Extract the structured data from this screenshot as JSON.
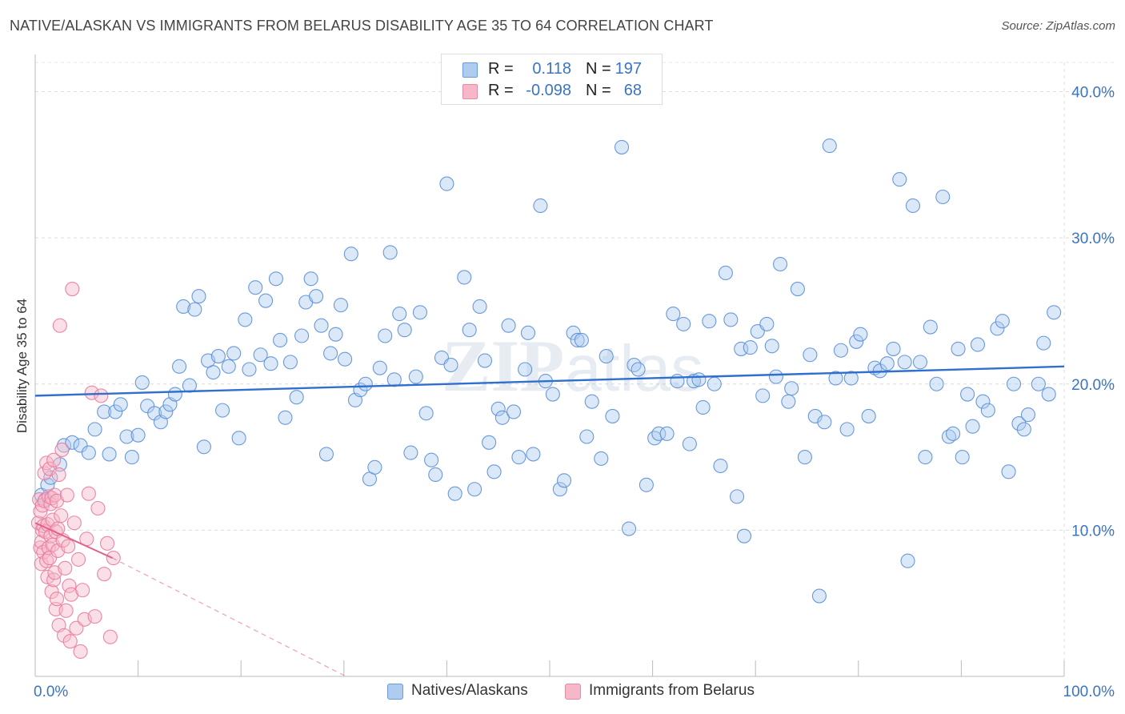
{
  "header": {
    "title": "NATIVE/ALASKAN VS IMMIGRANTS FROM BELARUS DISABILITY AGE 35 TO 64 CORRELATION CHART",
    "source": "Source: ZipAtlas.com"
  },
  "watermark": {
    "zip": "ZIP",
    "atlas": "atlas"
  },
  "legend_top": {
    "rows": [
      {
        "r_label": "R =",
        "r_value": "0.118",
        "n_label": "N =",
        "n_value": "197",
        "color": "#aecbf0"
      },
      {
        "r_label": "R =",
        "r_value": "-0.098",
        "n_label": "N =",
        "n_value": "68",
        "color": "#f6b8c8"
      }
    ]
  },
  "legend_bottom": [
    {
      "label": "Natives/Alaskans",
      "color": "#aecbf0"
    },
    {
      "label": "Immigrants from Belarus",
      "color": "#f6b8c8"
    }
  ],
  "chart_data": {
    "type": "scatter",
    "title": "NATIVE/ALASKAN VS IMMIGRANTS FROM BELARUS DISABILITY AGE 35 TO 64 CORRELATION CHART",
    "xlabel": "",
    "ylabel": "Disability Age 35 to 64",
    "xlim": [
      0,
      100
    ],
    "ylim": [
      0,
      42
    ],
    "x_tick_labels": [
      "0.0%",
      "100.0%"
    ],
    "y_ticks": [
      10,
      20,
      30,
      40
    ],
    "y_tick_labels": [
      "10.0%",
      "20.0%",
      "30.0%",
      "40.0%"
    ],
    "grid": true,
    "legend_position": "top-center",
    "series": [
      {
        "name": "Natives/Alaskans",
        "color": "#5b8fd6",
        "fill": "#aecbf0",
        "trend": {
          "x": [
            0,
            100
          ],
          "y": [
            19.2,
            21.2
          ],
          "color": "#2f6fcf"
        },
        "points": [
          [
            0.6,
            12.4
          ],
          [
            1.0,
            12.1
          ],
          [
            1.2,
            13.1
          ],
          [
            1.5,
            13.6
          ],
          [
            2.4,
            14.5
          ],
          [
            2.8,
            15.8
          ],
          [
            3.6,
            16.0
          ],
          [
            4.4,
            15.8
          ],
          [
            5.2,
            15.3
          ],
          [
            5.8,
            16.9
          ],
          [
            6.7,
            18.1
          ],
          [
            7.2,
            15.2
          ],
          [
            7.8,
            18.1
          ],
          [
            8.3,
            18.6
          ],
          [
            8.9,
            16.4
          ],
          [
            9.4,
            15.0
          ],
          [
            10.0,
            16.5
          ],
          [
            10.4,
            20.1
          ],
          [
            10.9,
            18.5
          ],
          [
            11.6,
            18.0
          ],
          [
            12.2,
            17.4
          ],
          [
            12.7,
            18.1
          ],
          [
            13.1,
            18.6
          ],
          [
            13.6,
            19.3
          ],
          [
            14.0,
            21.2
          ],
          [
            14.4,
            25.3
          ],
          [
            15.0,
            19.9
          ],
          [
            15.5,
            25.1
          ],
          [
            15.9,
            26.0
          ],
          [
            16.4,
            15.7
          ],
          [
            16.8,
            21.6
          ],
          [
            17.3,
            20.8
          ],
          [
            17.8,
            21.9
          ],
          [
            18.2,
            18.2
          ],
          [
            18.8,
            21.2
          ],
          [
            19.3,
            22.1
          ],
          [
            19.8,
            16.3
          ],
          [
            20.4,
            24.4
          ],
          [
            20.8,
            21.0
          ],
          [
            21.4,
            26.6
          ],
          [
            21.9,
            22.0
          ],
          [
            22.4,
            25.7
          ],
          [
            22.9,
            21.4
          ],
          [
            23.4,
            27.2
          ],
          [
            23.8,
            23.0
          ],
          [
            24.3,
            17.7
          ],
          [
            24.8,
            21.5
          ],
          [
            25.4,
            19.1
          ],
          [
            25.9,
            23.3
          ],
          [
            26.3,
            25.6
          ],
          [
            26.8,
            27.2
          ],
          [
            27.3,
            26.0
          ],
          [
            27.8,
            24.0
          ],
          [
            28.3,
            15.2
          ],
          [
            28.7,
            22.1
          ],
          [
            29.2,
            23.4
          ],
          [
            29.7,
            25.4
          ],
          [
            30.1,
            21.7
          ],
          [
            30.7,
            28.9
          ],
          [
            31.1,
            18.9
          ],
          [
            31.6,
            19.6
          ],
          [
            32.1,
            20.0
          ],
          [
            32.5,
            13.5
          ],
          [
            33.0,
            14.3
          ],
          [
            33.5,
            21.1
          ],
          [
            34.0,
            23.3
          ],
          [
            34.5,
            29.0
          ],
          [
            34.9,
            20.3
          ],
          [
            35.4,
            24.8
          ],
          [
            35.9,
            23.7
          ],
          [
            36.5,
            15.3
          ],
          [
            37.0,
            20.5
          ],
          [
            37.4,
            24.9
          ],
          [
            38.0,
            18.0
          ],
          [
            38.5,
            14.8
          ],
          [
            38.9,
            13.8
          ],
          [
            39.5,
            21.8
          ],
          [
            40.0,
            33.7
          ],
          [
            40.4,
            21.3
          ],
          [
            40.8,
            12.5
          ],
          [
            41.7,
            27.3
          ],
          [
            42.2,
            23.7
          ],
          [
            42.7,
            12.8
          ],
          [
            43.2,
            25.3
          ],
          [
            43.7,
            21.6
          ],
          [
            44.1,
            16.0
          ],
          [
            44.6,
            14.0
          ],
          [
            45.0,
            18.3
          ],
          [
            45.4,
            17.7
          ],
          [
            46.0,
            24.0
          ],
          [
            46.5,
            18.1
          ],
          [
            47.0,
            15.0
          ],
          [
            47.6,
            21.0
          ],
          [
            47.9,
            23.5
          ],
          [
            48.4,
            15.2
          ],
          [
            49.1,
            32.2
          ],
          [
            49.6,
            20.2
          ],
          [
            50.3,
            19.3
          ],
          [
            51.0,
            12.8
          ],
          [
            51.4,
            13.4
          ],
          [
            52.3,
            23.5
          ],
          [
            52.7,
            23.0
          ],
          [
            53.1,
            23.0
          ],
          [
            53.6,
            16.4
          ],
          [
            54.1,
            18.8
          ],
          [
            55.0,
            14.9
          ],
          [
            55.5,
            21.9
          ],
          [
            56.1,
            17.8
          ],
          [
            57.0,
            36.2
          ],
          [
            57.7,
            10.1
          ],
          [
            58.2,
            21.3
          ],
          [
            58.6,
            21.0
          ],
          [
            59.4,
            13.1
          ],
          [
            60.2,
            16.3
          ],
          [
            60.6,
            16.6
          ],
          [
            61.4,
            16.6
          ],
          [
            62.0,
            24.8
          ],
          [
            62.4,
            20.2
          ],
          [
            63.0,
            24.1
          ],
          [
            63.6,
            15.9
          ],
          [
            64.0,
            20.2
          ],
          [
            64.5,
            20.3
          ],
          [
            64.9,
            18.4
          ],
          [
            65.5,
            24.3
          ],
          [
            66.0,
            20.0
          ],
          [
            66.6,
            14.4
          ],
          [
            67.1,
            27.6
          ],
          [
            67.6,
            24.4
          ],
          [
            68.2,
            12.3
          ],
          [
            68.6,
            22.4
          ],
          [
            68.9,
            9.6
          ],
          [
            69.5,
            22.5
          ],
          [
            70.2,
            23.6
          ],
          [
            70.7,
            19.2
          ],
          [
            71.1,
            24.1
          ],
          [
            71.6,
            22.6
          ],
          [
            72.0,
            20.5
          ],
          [
            72.4,
            28.2
          ],
          [
            73.2,
            18.8
          ],
          [
            73.5,
            19.7
          ],
          [
            74.1,
            26.5
          ],
          [
            74.8,
            15.0
          ],
          [
            75.3,
            22.0
          ],
          [
            75.8,
            17.8
          ],
          [
            76.2,
            5.5
          ],
          [
            76.7,
            17.4
          ],
          [
            77.2,
            36.3
          ],
          [
            77.8,
            20.4
          ],
          [
            78.3,
            22.3
          ],
          [
            78.9,
            16.9
          ],
          [
            79.3,
            20.4
          ],
          [
            79.8,
            22.9
          ],
          [
            80.2,
            23.4
          ],
          [
            81.0,
            17.8
          ],
          [
            81.6,
            21.1
          ],
          [
            82.1,
            20.9
          ],
          [
            82.8,
            21.4
          ],
          [
            83.4,
            22.4
          ],
          [
            84.0,
            34.0
          ],
          [
            84.5,
            21.5
          ],
          [
            84.8,
            7.9
          ],
          [
            85.3,
            32.2
          ],
          [
            86.0,
            21.5
          ],
          [
            86.5,
            15.0
          ],
          [
            87.0,
            23.9
          ],
          [
            87.6,
            20.0
          ],
          [
            88.2,
            32.8
          ],
          [
            88.8,
            16.4
          ],
          [
            89.2,
            16.6
          ],
          [
            89.7,
            22.4
          ],
          [
            90.1,
            15.0
          ],
          [
            90.6,
            19.3
          ],
          [
            91.1,
            17.1
          ],
          [
            91.6,
            22.7
          ],
          [
            92.1,
            18.8
          ],
          [
            92.6,
            18.2
          ],
          [
            93.5,
            23.8
          ],
          [
            94.0,
            24.3
          ],
          [
            94.6,
            14.0
          ],
          [
            95.1,
            20.0
          ],
          [
            95.6,
            17.3
          ],
          [
            96.1,
            16.9
          ],
          [
            96.5,
            17.9
          ],
          [
            97.5,
            20.0
          ],
          [
            98.0,
            22.8
          ],
          [
            98.5,
            19.3
          ],
          [
            99.0,
            24.9
          ]
        ]
      },
      {
        "name": "Immigrants from Belarus",
        "color": "#e87aa0",
        "fill": "#f6b8c8",
        "trend": {
          "x": [
            0,
            7.5
          ],
          "y": [
            10.5,
            8.1
          ],
          "dashed_to": [
            30.2,
            0
          ],
          "color": "#e0608a"
        },
        "points": [
          [
            0.3,
            10.5
          ],
          [
            0.4,
            12.1
          ],
          [
            0.5,
            11.3
          ],
          [
            0.5,
            8.8
          ],
          [
            0.6,
            7.7
          ],
          [
            0.6,
            9.2
          ],
          [
            0.7,
            10.0
          ],
          [
            0.7,
            11.7
          ],
          [
            0.8,
            10.3
          ],
          [
            0.8,
            8.5
          ],
          [
            0.9,
            13.9
          ],
          [
            0.9,
            12.0
          ],
          [
            1.0,
            9.9
          ],
          [
            1.1,
            14.6
          ],
          [
            1.1,
            7.9
          ],
          [
            1.2,
            10.4
          ],
          [
            1.2,
            6.8
          ],
          [
            1.3,
            8.8
          ],
          [
            1.3,
            12.3
          ],
          [
            1.4,
            14.2
          ],
          [
            1.4,
            8.1
          ],
          [
            1.5,
            9.6
          ],
          [
            1.5,
            11.8
          ],
          [
            1.6,
            12.2
          ],
          [
            1.6,
            5.8
          ],
          [
            1.7,
            9.0
          ],
          [
            1.7,
            10.7
          ],
          [
            1.8,
            14.8
          ],
          [
            1.8,
            6.6
          ],
          [
            1.9,
            12.4
          ],
          [
            1.9,
            7.1
          ],
          [
            2.0,
            9.9
          ],
          [
            2.0,
            4.6
          ],
          [
            2.1,
            12.0
          ],
          [
            2.1,
            5.3
          ],
          [
            2.2,
            8.6
          ],
          [
            2.2,
            10.1
          ],
          [
            2.3,
            13.8
          ],
          [
            2.3,
            3.5
          ],
          [
            2.4,
            24.0
          ],
          [
            2.5,
            11.0
          ],
          [
            2.6,
            15.5
          ],
          [
            2.7,
            9.3
          ],
          [
            2.8,
            2.8
          ],
          [
            2.9,
            7.4
          ],
          [
            3.0,
            4.5
          ],
          [
            3.1,
            12.4
          ],
          [
            3.2,
            8.9
          ],
          [
            3.3,
            6.2
          ],
          [
            3.4,
            2.4
          ],
          [
            3.5,
            5.6
          ],
          [
            3.6,
            26.5
          ],
          [
            3.8,
            10.5
          ],
          [
            4.0,
            3.3
          ],
          [
            4.2,
            8.0
          ],
          [
            4.4,
            1.7
          ],
          [
            4.6,
            5.9
          ],
          [
            4.8,
            3.9
          ],
          [
            5.0,
            9.4
          ],
          [
            5.2,
            12.5
          ],
          [
            5.5,
            19.4
          ],
          [
            5.8,
            4.1
          ],
          [
            6.1,
            11.5
          ],
          [
            6.4,
            19.2
          ],
          [
            6.7,
            7.0
          ],
          [
            7.0,
            9.1
          ],
          [
            7.3,
            2.7
          ],
          [
            7.6,
            8.1
          ]
        ]
      }
    ]
  }
}
